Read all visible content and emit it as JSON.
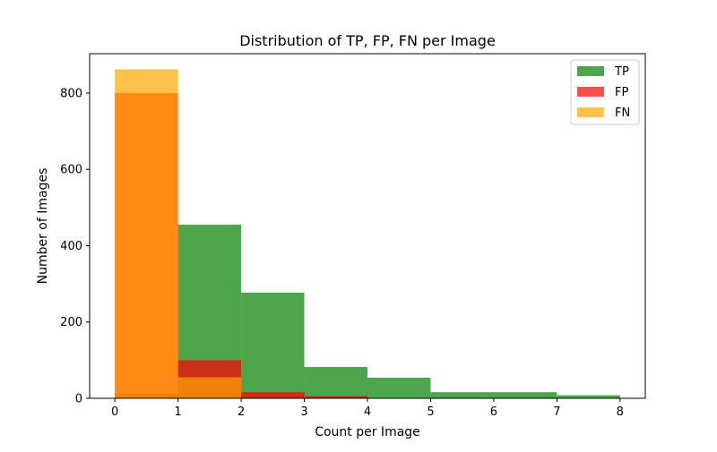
{
  "chart_data": {
    "type": "bar",
    "title": "Distribution of TP, FP, FN per Image",
    "xlabel": "Count per Image",
    "ylabel": "Number of Images",
    "xlim": [
      -0.4,
      8.4
    ],
    "ylim": [
      0,
      903
    ],
    "xticks": [
      "0",
      "1",
      "2",
      "3",
      "4",
      "5",
      "6",
      "7",
      "8"
    ],
    "yticks": [
      "0",
      "200",
      "400",
      "600",
      "800"
    ],
    "legend_position": "top-right",
    "bins": [
      [
        0,
        1
      ],
      [
        1,
        2
      ],
      [
        2,
        3
      ],
      [
        3,
        4
      ],
      [
        4,
        5
      ],
      [
        5,
        7
      ],
      [
        7,
        8
      ]
    ],
    "series": [
      {
        "name": "TP",
        "color": "#008000",
        "opacity": 0.7,
        "values": [
          12,
          455,
          277,
          82,
          54,
          16,
          8
        ]
      },
      {
        "name": "FP",
        "color": "#ff0000",
        "opacity": 0.7,
        "values": [
          800,
          100,
          16,
          6,
          0,
          0,
          0
        ]
      },
      {
        "name": "FN",
        "color": "#ffa500",
        "opacity": 0.7,
        "values": [
          862,
          55,
          0,
          0,
          0,
          0,
          0
        ]
      }
    ]
  }
}
